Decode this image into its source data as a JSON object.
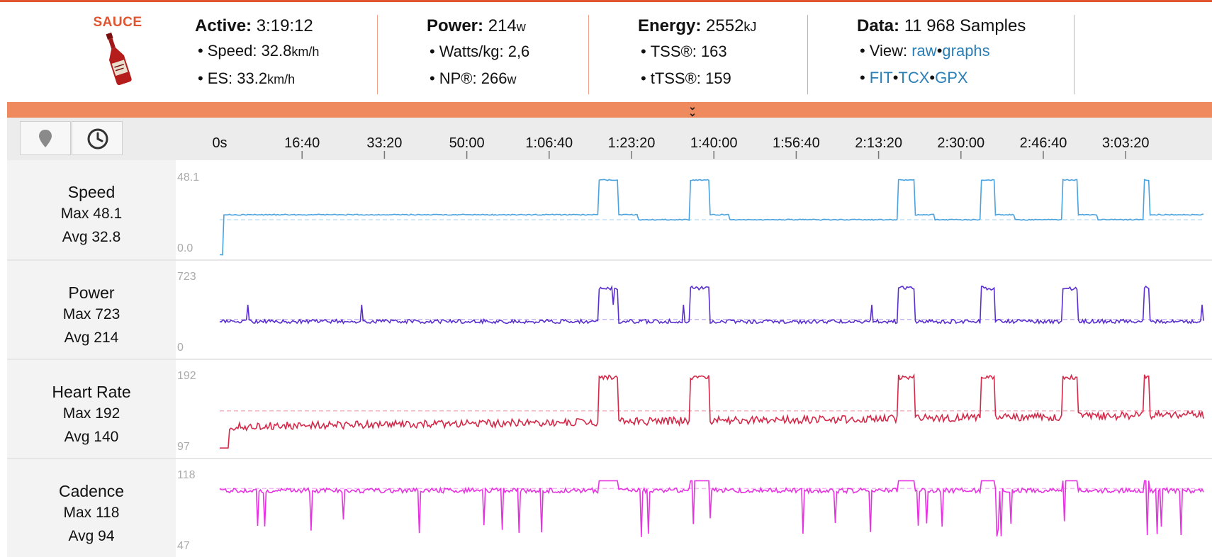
{
  "header": {
    "logo_text": "SAUCE",
    "groups": [
      {
        "label": "Active:",
        "value": "3:19:12",
        "unit": "",
        "lines": [
          {
            "label": "Speed:",
            "value": "32.8",
            "unit": "km/h"
          },
          {
            "label": "ES:",
            "value": "33.2",
            "unit": "km/h"
          }
        ]
      },
      {
        "label": "Power:",
        "value": "214",
        "unit": "w",
        "lines": [
          {
            "label": "Watts/kg:",
            "value": "2,6",
            "unit": ""
          },
          {
            "label": "NP®:",
            "value": "266",
            "unit": "w"
          }
        ]
      },
      {
        "label": "Energy:",
        "value": "2552",
        "unit": "kJ",
        "lines": [
          {
            "label": "TSS®:",
            "value": "163",
            "unit": ""
          },
          {
            "label": "tTSS®:",
            "value": "159",
            "unit": ""
          }
        ]
      },
      {
        "label": "Data:",
        "value": "11 968",
        "unit": "Samples",
        "view_label": "View:",
        "links_view": [
          "raw",
          "graphs"
        ],
        "links_export": [
          "FIT",
          "TCX",
          "GPX"
        ]
      }
    ]
  },
  "toolbar": {
    "map_icon": "map-pin-icon",
    "time_icon": "clock-icon"
  },
  "timeline": {
    "ticks": [
      "0s",
      "16:40",
      "33:20",
      "50:00",
      "1:06:40",
      "1:23:20",
      "1:40:00",
      "1:56:40",
      "2:13:20",
      "2:30:00",
      "2:46:40",
      "3:03:20"
    ]
  },
  "panels": [
    {
      "name": "Speed",
      "max_label": "Max 48.1",
      "avg_label": "Avg 32.8",
      "ymax": "48.1",
      "ymin": "0.0",
      "color": "#4aa3df"
    },
    {
      "name": "Power",
      "max_label": "Max 723",
      "avg_label": "Avg 214",
      "ymax": "723",
      "ymin": "0",
      "color": "#5b2fcf"
    },
    {
      "name": "Heart Rate",
      "max_label": "Max 192",
      "avg_label": "Avg 140",
      "ymax": "192",
      "ymin": "97",
      "color": "#d42a4a"
    },
    {
      "name": "Cadence",
      "max_label": "Max 118",
      "avg_label": "Avg 94",
      "ymax": "118",
      "ymin": "47",
      "color": "#e633e0"
    }
  ]
}
